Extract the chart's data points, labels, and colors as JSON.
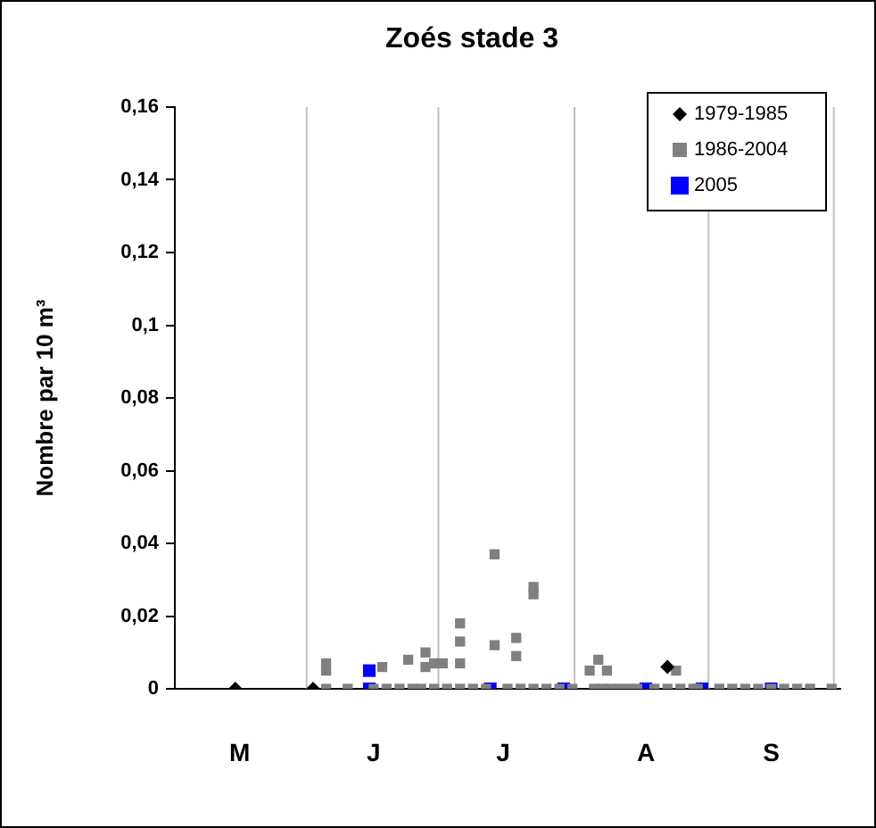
{
  "chart_data": {
    "type": "scatter",
    "title": "Zoés stade 3",
    "ylabel": "Nombre par 10 m³",
    "grid": "x",
    "categories": [
      null,
      null,
      null,
      null,
      null,
      null,
      null,
      null,
      null,
      null,
      null,
      null,
      null,
      null,
      null,
      "M",
      null,
      null,
      null,
      null,
      null,
      null,
      null,
      null,
      null,
      null,
      null,
      null,
      null,
      null,
      null,
      null,
      null,
      null,
      null,
      null,
      null,
      null,
      null,
      null,
      null,
      null,
      null,
      null,
      null,
      null,
      "J",
      null,
      null,
      null,
      null,
      null,
      null,
      null,
      null,
      null,
      null,
      null,
      null,
      null,
      null,
      null,
      null,
      null,
      null,
      null,
      null,
      null,
      null,
      null,
      null,
      null,
      null,
      null,
      null,
      null,
      "J",
      null,
      null,
      null,
      null,
      null,
      null,
      null,
      null,
      null,
      null,
      null,
      null,
      null,
      null,
      null,
      null,
      null,
      null,
      null,
      null,
      null,
      null,
      null,
      null,
      null,
      null,
      null,
      null,
      null,
      null,
      null,
      null,
      "A",
      null,
      null,
      null,
      null,
      null,
      null,
      null,
      null,
      null,
      null,
      null,
      null,
      null,
      null,
      null,
      null,
      null,
      null,
      null,
      null,
      null,
      null,
      null,
      null,
      null,
      null,
      null,
      null,
      "S",
      null,
      null,
      null,
      null,
      null,
      null,
      null,
      null,
      null,
      null,
      null,
      null,
      null,
      null,
      null,
      null
    ],
    "ylim": [
      0,
      0.16
    ],
    "yticks": [
      {
        "value": 0,
        "label": "0"
      },
      {
        "value": 0.02,
        "label": "0,02"
      },
      {
        "value": 0.04,
        "label": "0,04"
      },
      {
        "value": 0.06,
        "label": "0,06"
      },
      {
        "value": 0.08,
        "label": "0,08"
      },
      {
        "value": 0.1,
        "label": "0,1"
      },
      {
        "value": 0.12,
        "label": "0,12"
      },
      {
        "value": 0.14,
        "label": "0,14"
      },
      {
        "value": 0.16,
        "label": "0,16"
      }
    ],
    "legend": "top right",
    "series": [
      {
        "name": "1979-1985",
        "color": "#000000",
        "marker": "diamond",
        "values": [
          null,
          null,
          null,
          null,
          null,
          null,
          null,
          null,
          null,
          null,
          null,
          null,
          null,
          null,
          0,
          null,
          null,
          null,
          null,
          null,
          null,
          null,
          null,
          null,
          null,
          null,
          null,
          null,
          null,
          null,
          null,
          null,
          0,
          null,
          null,
          null,
          null,
          null,
          null,
          null,
          null,
          null,
          null,
          null,
          null,
          null,
          null,
          null,
          null,
          null,
          null,
          null,
          null,
          null,
          null,
          null,
          null,
          null,
          null,
          null,
          null,
          null,
          null,
          null,
          null,
          null,
          null,
          null,
          null,
          null,
          null,
          null,
          null,
          null,
          null,
          null,
          null,
          null,
          null,
          null,
          null,
          null,
          null,
          null,
          null,
          null,
          null,
          null,
          null,
          null,
          null,
          null,
          null,
          null,
          null,
          null,
          null,
          null,
          null,
          null,
          null,
          null,
          null,
          null,
          null,
          null,
          null,
          null,
          null,
          null,
          null,
          null,
          null,
          null,
          0.006,
          null,
          null,
          null,
          null,
          null,
          null,
          null,
          null,
          null,
          null,
          null,
          null,
          null,
          null,
          null,
          null,
          null,
          null,
          null,
          null,
          null,
          null,
          null,
          null,
          null,
          null,
          null,
          null,
          null,
          null,
          null,
          null,
          null,
          null,
          null,
          null,
          null,
          null,
          null,
          null
        ]
      },
      {
        "name": "1986-2004",
        "color": "#808080",
        "marker": "square",
        "values": [
          null,
          null,
          null,
          null,
          null,
          null,
          null,
          null,
          null,
          null,
          null,
          null,
          null,
          null,
          null,
          null,
          null,
          null,
          null,
          null,
          null,
          null,
          null,
          null,
          null,
          null,
          null,
          null,
          null,
          null,
          null,
          null,
          null,
          null,
          null,
          0,
          null,
          null,
          null,
          null,
          0,
          null,
          null,
          null,
          null,
          null,
          0,
          null,
          0.006,
          0,
          null,
          null,
          0,
          null,
          0.008,
          0,
          null,
          0,
          0.01,
          null,
          0,
          null,
          0.007,
          0,
          null,
          null,
          0,
          null,
          null,
          0,
          null,
          null,
          0,
          null,
          0.037,
          null,
          null,
          0,
          null,
          0.014,
          0,
          null,
          null,
          0,
          null,
          null,
          0,
          null,
          null,
          0,
          null,
          null,
          0,
          null,
          null,
          null,
          0.005,
          0,
          0.008,
          0,
          0.005,
          0,
          null,
          0,
          null,
          0,
          null,
          0,
          null,
          null,
          null,
          0,
          null,
          null,
          0,
          null,
          0.005,
          0,
          null,
          null,
          0,
          0,
          null,
          null,
          null,
          null,
          0,
          null,
          null,
          0,
          null,
          null,
          0,
          null,
          null,
          0,
          null,
          null,
          0,
          null,
          null,
          0,
          null,
          null,
          0,
          null,
          null,
          0,
          null,
          null,
          null,
          null,
          0,
          null,
          null
        ]
      },
      {
        "color": "#808080",
        "marker": "square",
        "values": [
          null,
          null,
          null,
          null,
          null,
          null,
          null,
          null,
          null,
          null,
          null,
          null,
          null,
          null,
          null,
          null,
          null,
          null,
          null,
          null,
          null,
          null,
          null,
          null,
          null,
          null,
          null,
          null,
          null,
          null,
          null,
          null,
          null,
          null,
          null,
          0.007,
          null,
          null,
          null,
          null,
          null,
          null,
          null,
          null,
          null,
          null,
          null,
          null,
          null,
          null,
          null,
          null,
          null,
          null,
          null,
          null,
          null,
          null,
          0.006,
          null,
          0.007,
          null,
          null,
          null,
          null,
          null,
          0.018,
          null,
          null,
          null,
          null,
          null,
          null,
          null,
          0.012,
          null,
          null,
          null,
          null,
          0.009,
          null,
          null,
          null,
          0.028,
          null,
          null,
          null,
          null,
          null,
          null,
          null,
          null,
          null,
          null,
          null,
          null,
          null,
          null,
          null,
          null,
          null,
          null,
          null,
          null,
          null,
          null,
          null,
          null,
          null,
          null,
          null,
          null,
          null,
          null,
          null,
          null,
          null,
          null,
          null,
          null,
          null,
          null,
          null,
          null,
          null,
          null,
          null,
          null,
          null,
          null,
          null,
          null,
          null,
          null,
          null,
          null,
          null,
          null,
          null,
          null,
          null,
          null,
          null,
          null,
          null,
          null,
          null,
          null,
          null,
          null,
          null,
          null,
          null,
          null,
          null
        ]
      },
      {
        "color": "#808080",
        "marker": "square",
        "values": [
          null,
          null,
          null,
          null,
          null,
          null,
          null,
          null,
          null,
          null,
          null,
          null,
          null,
          null,
          null,
          null,
          null,
          null,
          null,
          null,
          null,
          null,
          null,
          null,
          null,
          null,
          null,
          null,
          null,
          null,
          null,
          null,
          null,
          null,
          null,
          0.005,
          null,
          null,
          null,
          null,
          null,
          null,
          null,
          null,
          null,
          null,
          null,
          null,
          null,
          null,
          null,
          null,
          null,
          null,
          null,
          null,
          null,
          null,
          null,
          null,
          null,
          null,
          null,
          null,
          null,
          null,
          0.013,
          null,
          null,
          null,
          null,
          null,
          null,
          null,
          null,
          null,
          null,
          null,
          null,
          null,
          null,
          null,
          null,
          0.026,
          null,
          null,
          null,
          null,
          null,
          null,
          null,
          null,
          null,
          null,
          null,
          null,
          null,
          null,
          null,
          null,
          null,
          null,
          null,
          null,
          null,
          null,
          null,
          null,
          null,
          null,
          null,
          null,
          null,
          null,
          null,
          null,
          null,
          null,
          null,
          null,
          null,
          null,
          null,
          null,
          null,
          null,
          null,
          null,
          null,
          null,
          null,
          null,
          null,
          null,
          null,
          null,
          null,
          null,
          null,
          null,
          null,
          null,
          null,
          null,
          null,
          null,
          null,
          null,
          null,
          null,
          null,
          null,
          null,
          null,
          null
        ]
      },
      {
        "color": "#808080",
        "marker": "square",
        "values": [
          null,
          null,
          null,
          null,
          null,
          null,
          null,
          null,
          null,
          null,
          null,
          null,
          null,
          null,
          null,
          null,
          null,
          null,
          null,
          null,
          null,
          null,
          null,
          null,
          null,
          null,
          null,
          null,
          null,
          null,
          null,
          null,
          null,
          null,
          null,
          null,
          null,
          null,
          null,
          null,
          null,
          null,
          null,
          null,
          null,
          null,
          null,
          null,
          null,
          null,
          null,
          null,
          null,
          null,
          null,
          null,
          null,
          null,
          null,
          null,
          null,
          null,
          null,
          null,
          null,
          null,
          0.007,
          null,
          null,
          null,
          null,
          null,
          null,
          null,
          null,
          null,
          null,
          null,
          null,
          null,
          null,
          null,
          null,
          null,
          null,
          null,
          null,
          null,
          null,
          null,
          null,
          null,
          null,
          null,
          null,
          null,
          null,
          null,
          null,
          null,
          null,
          null,
          null,
          null,
          null,
          null,
          null,
          null,
          null,
          null,
          null,
          null,
          null,
          null,
          null,
          null,
          null,
          null,
          null,
          null,
          null,
          null,
          null,
          null,
          null,
          null,
          null,
          null,
          null,
          null,
          null,
          null,
          null,
          null,
          null,
          null,
          null,
          null,
          null,
          null,
          null,
          null,
          null,
          null,
          null,
          null,
          null,
          null,
          null,
          null,
          null,
          null,
          null,
          null,
          null
        ]
      },
      {
        "name": "2005",
        "color": "#0000ff",
        "marker": "square",
        "values": [
          null,
          null,
          null,
          null,
          null,
          null,
          null,
          null,
          null,
          null,
          null,
          null,
          null,
          null,
          null,
          null,
          null,
          null,
          null,
          null,
          null,
          null,
          null,
          null,
          null,
          null,
          null,
          null,
          null,
          null,
          null,
          null,
          null,
          null,
          null,
          null,
          null,
          null,
          null,
          null,
          null,
          null,
          null,
          null,
          null,
          0.005,
          null,
          null,
          null,
          null,
          null,
          null,
          null,
          null,
          null,
          null,
          null,
          null,
          null,
          null,
          null,
          null,
          null,
          null,
          null,
          null,
          null,
          null,
          null,
          null,
          null,
          null,
          null,
          0,
          null,
          null,
          null,
          null,
          null,
          null,
          null,
          null,
          null,
          null,
          null,
          null,
          null,
          null,
          null,
          null,
          0,
          null,
          null,
          null,
          null,
          null,
          null,
          null,
          null,
          null,
          null,
          null,
          null,
          null,
          null,
          null,
          null,
          null,
          null,
          0,
          null,
          null,
          null,
          null,
          null,
          null,
          null,
          null,
          null,
          null,
          null,
          null,
          0,
          null,
          null,
          null,
          null,
          null,
          null,
          null,
          null,
          null,
          null,
          null,
          null,
          null,
          null,
          null,
          0,
          null,
          null,
          null,
          null,
          null,
          null,
          null,
          null,
          null,
          null,
          null,
          null,
          null,
          null,
          null,
          null
        ]
      },
      {
        "color": "#0000ff",
        "marker": "square",
        "values": [
          null,
          null,
          null,
          null,
          null,
          null,
          null,
          null,
          null,
          null,
          null,
          null,
          null,
          null,
          null,
          null,
          null,
          null,
          null,
          null,
          null,
          null,
          null,
          null,
          null,
          null,
          null,
          null,
          null,
          null,
          null,
          null,
          null,
          null,
          null,
          null,
          null,
          null,
          null,
          null,
          null,
          null,
          null,
          null,
          null,
          0,
          null,
          null,
          null,
          null,
          null,
          null,
          null,
          null,
          null,
          null,
          null,
          null,
          null,
          null,
          null,
          null,
          null,
          null,
          null,
          null,
          null,
          null,
          null,
          null,
          null,
          null,
          null,
          null,
          null,
          null,
          null,
          null,
          null,
          null,
          null,
          null,
          null,
          null,
          null,
          null,
          null,
          null,
          null,
          null,
          null,
          null,
          null,
          null,
          null,
          null,
          null,
          null,
          null,
          null,
          null,
          null,
          null,
          null,
          null,
          null,
          null,
          null,
          null,
          null,
          null,
          null,
          null,
          null,
          null,
          null,
          null,
          null,
          null,
          null,
          null,
          null,
          null,
          null,
          null,
          null,
          null,
          null,
          null,
          null,
          null,
          null,
          null,
          null,
          null,
          null,
          null,
          null,
          null,
          null,
          null,
          null,
          null,
          null,
          null,
          null,
          null,
          null,
          null,
          null,
          null,
          null,
          null,
          null,
          null
        ]
      }
    ]
  }
}
